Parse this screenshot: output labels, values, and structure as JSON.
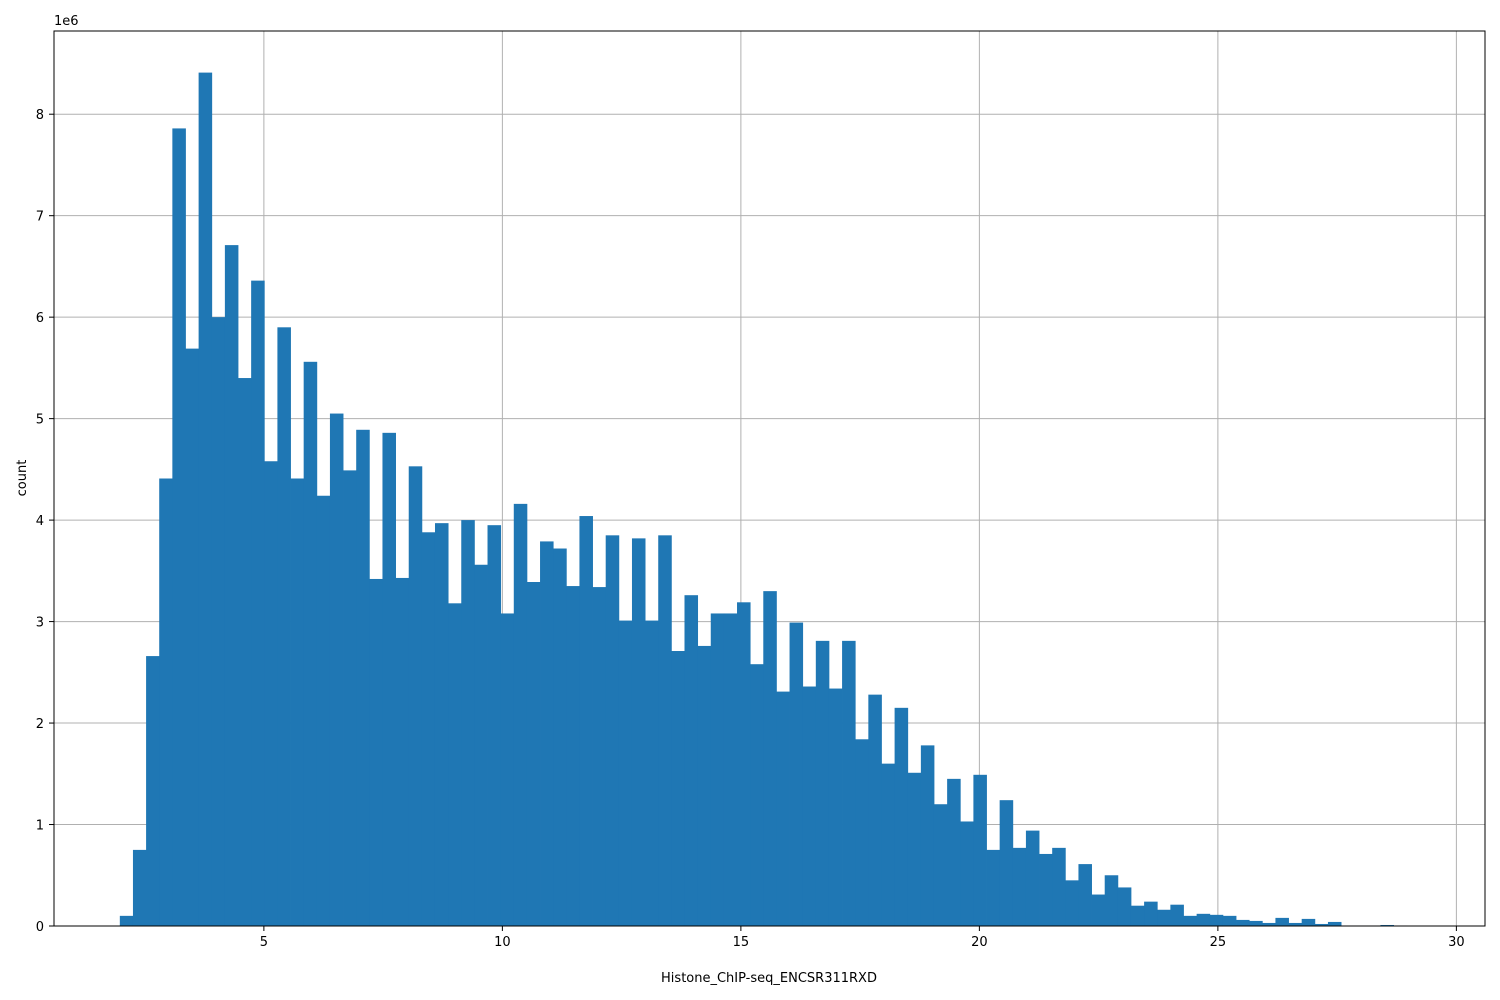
{
  "chart_data": {
    "type": "bar",
    "title": "",
    "xlabel": "Histone_ChIP-seq_ENCSR311RXD",
    "ylabel": "count",
    "y_multiplier_label": "1e6",
    "y_multiplier": 1000000,
    "xlim": [
      0.6,
      30.6
    ],
    "ylim": [
      0,
      8.82
    ],
    "xticks": [
      5,
      10,
      15,
      20,
      25,
      30
    ],
    "yticks": [
      0,
      1,
      2,
      3,
      4,
      5,
      6,
      7,
      8
    ],
    "grid": true,
    "color": "#1f77b4",
    "bin_start": 1.98,
    "bin_width": 0.2753,
    "values": [
      0.1,
      0.75,
      2.66,
      4.41,
      7.86,
      5.69,
      8.41,
      6.0,
      6.71,
      5.4,
      6.36,
      4.58,
      5.9,
      4.41,
      5.56,
      4.24,
      5.05,
      4.49,
      4.89,
      3.42,
      4.86,
      3.43,
      4.53,
      3.88,
      3.97,
      3.18,
      4.0,
      3.56,
      3.95,
      3.08,
      4.16,
      3.39,
      3.79,
      3.72,
      3.35,
      4.04,
      3.34,
      3.85,
      3.01,
      3.82,
      3.01,
      3.85,
      2.71,
      3.26,
      2.76,
      3.08,
      3.08,
      3.19,
      2.58,
      3.3,
      2.31,
      2.99,
      2.36,
      2.81,
      2.34,
      2.81,
      1.84,
      2.28,
      1.6,
      2.15,
      1.51,
      1.78,
      1.2,
      1.45,
      1.03,
      1.49,
      0.75,
      1.24,
      0.77,
      0.94,
      0.71,
      0.77,
      0.45,
      0.61,
      0.31,
      0.5,
      0.38,
      0.2,
      0.24,
      0.16,
      0.21,
      0.1,
      0.12,
      0.11,
      0.1,
      0.06,
      0.05,
      0.03,
      0.08,
      0.03,
      0.07,
      0.02,
      0.04,
      0.005,
      0.005,
      0.005,
      0.01,
      0.005
    ]
  }
}
